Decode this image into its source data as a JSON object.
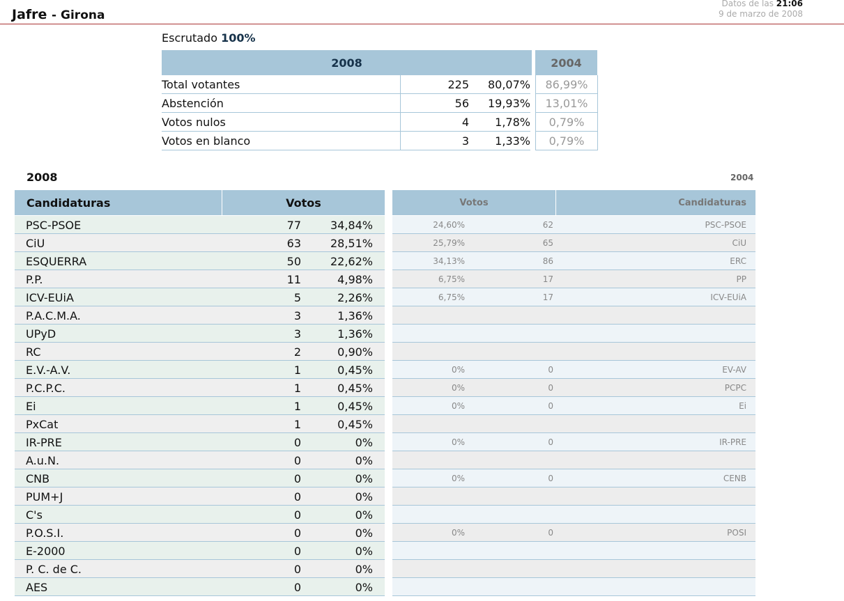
{
  "header": {
    "town": "Jafre",
    "province": "Girona",
    "data_label": "Datos de las",
    "time": "21:06",
    "date": "9 de marzo de 2008"
  },
  "escrutado": {
    "label": "Escrutado",
    "value": "100%"
  },
  "summary": {
    "year_current": "2008",
    "year_previous": "2004",
    "rows": [
      {
        "label": "Total votantes",
        "count": "225",
        "pct": "80,07%",
        "prev_pct": "86,99%"
      },
      {
        "label": "Abstención",
        "count": "56",
        "pct": "19,93%",
        "prev_pct": "13,01%"
      },
      {
        "label": "Votos nulos",
        "count": "4",
        "pct": "1,78%",
        "prev_pct": "0,79%"
      },
      {
        "label": "Votos en blanco",
        "count": "3",
        "pct": "1,33%",
        "prev_pct": "0,79%"
      }
    ]
  },
  "results": {
    "year_current": "2008",
    "year_previous": "2004",
    "col_candidaturas": "Candidaturas",
    "col_votos": "Votos",
    "prev_col_votos": "Votos",
    "prev_col_candidaturas": "Candidaturas",
    "rows": [
      {
        "name": "PSC-PSOE",
        "votes": "77",
        "pct": "34,84%",
        "prev_pct": "24,60%",
        "prev_votes": "62",
        "prev_name": "PSC-PSOE"
      },
      {
        "name": "CiU",
        "votes": "63",
        "pct": "28,51%",
        "prev_pct": "25,79%",
        "prev_votes": "65",
        "prev_name": "CiU"
      },
      {
        "name": "ESQUERRA",
        "votes": "50",
        "pct": "22,62%",
        "prev_pct": "34,13%",
        "prev_votes": "86",
        "prev_name": "ERC"
      },
      {
        "name": "P.P.",
        "votes": "11",
        "pct": "4,98%",
        "prev_pct": "6,75%",
        "prev_votes": "17",
        "prev_name": "PP"
      },
      {
        "name": "ICV-EUiA",
        "votes": "5",
        "pct": "2,26%",
        "prev_pct": "6,75%",
        "prev_votes": "17",
        "prev_name": "ICV-EUiA"
      },
      {
        "name": "P.A.C.M.A.",
        "votes": "3",
        "pct": "1,36%",
        "prev_pct": "",
        "prev_votes": "",
        "prev_name": ""
      },
      {
        "name": "UPyD",
        "votes": "3",
        "pct": "1,36%",
        "prev_pct": "",
        "prev_votes": "",
        "prev_name": ""
      },
      {
        "name": "RC",
        "votes": "2",
        "pct": "0,90%",
        "prev_pct": "",
        "prev_votes": "",
        "prev_name": ""
      },
      {
        "name": "E.V.-A.V.",
        "votes": "1",
        "pct": "0,45%",
        "prev_pct": "0%",
        "prev_votes": "0",
        "prev_name": "EV-AV"
      },
      {
        "name": "P.C.P.C.",
        "votes": "1",
        "pct": "0,45%",
        "prev_pct": "0%",
        "prev_votes": "0",
        "prev_name": "PCPC"
      },
      {
        "name": "Ei",
        "votes": "1",
        "pct": "0,45%",
        "prev_pct": "0%",
        "prev_votes": "0",
        "prev_name": "Ei"
      },
      {
        "name": "PxCat",
        "votes": "1",
        "pct": "0,45%",
        "prev_pct": "",
        "prev_votes": "",
        "prev_name": ""
      },
      {
        "name": "IR-PRE",
        "votes": "0",
        "pct": "0%",
        "prev_pct": "0%",
        "prev_votes": "0",
        "prev_name": "IR-PRE"
      },
      {
        "name": "A.u.N.",
        "votes": "0",
        "pct": "0%",
        "prev_pct": "",
        "prev_votes": "",
        "prev_name": ""
      },
      {
        "name": "CNB",
        "votes": "0",
        "pct": "0%",
        "prev_pct": "0%",
        "prev_votes": "0",
        "prev_name": "CENB"
      },
      {
        "name": "PUM+J",
        "votes": "0",
        "pct": "0%",
        "prev_pct": "",
        "prev_votes": "",
        "prev_name": ""
      },
      {
        "name": "C's",
        "votes": "0",
        "pct": "0%",
        "prev_pct": "",
        "prev_votes": "",
        "prev_name": ""
      },
      {
        "name": "P.O.S.I.",
        "votes": "0",
        "pct": "0%",
        "prev_pct": "0%",
        "prev_votes": "0",
        "prev_name": "POSI"
      },
      {
        "name": "E-2000",
        "votes": "0",
        "pct": "0%",
        "prev_pct": "",
        "prev_votes": "",
        "prev_name": ""
      },
      {
        "name": "P. C. de C.",
        "votes": "0",
        "pct": "0%",
        "prev_pct": "",
        "prev_votes": "",
        "prev_name": ""
      },
      {
        "name": "AES",
        "votes": "0",
        "pct": "0%",
        "prev_pct": "",
        "prev_votes": "",
        "prev_name": ""
      }
    ]
  }
}
